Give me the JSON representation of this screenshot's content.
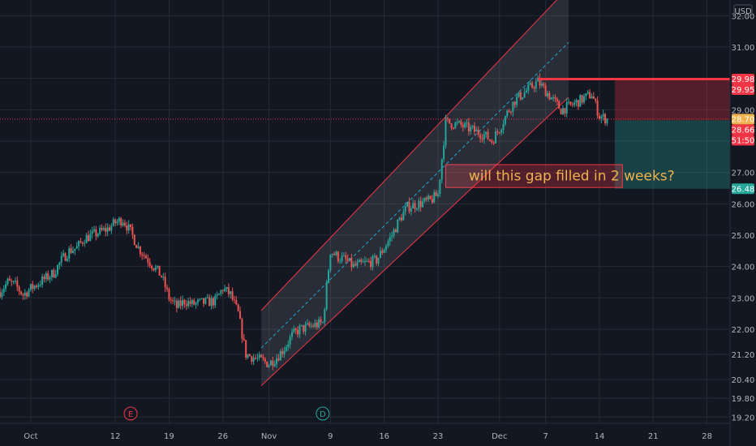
{
  "chart_data": {
    "type": "candlestick",
    "currency": "USD",
    "ylim": [
      19.0,
      32.5
    ],
    "y_ticks": [
      19.2,
      19.8,
      20.4,
      21.2,
      22.0,
      23.0,
      24.0,
      25.0,
      26.0,
      27.0,
      28.0,
      29.0,
      30.0,
      31.0,
      32.0
    ],
    "y_tick_labels": [
      "19.20",
      "19.80",
      "20.40",
      "21.20",
      "22.00",
      "23.00",
      "24.00",
      "25.00",
      "26.00",
      "27.00",
      "28.00",
      "29.00",
      "30.00",
      "31.00",
      "32.00"
    ],
    "x_range": [
      "2021-09-27",
      "2021-12-31"
    ],
    "x_ticks": [
      "2021-10-01",
      "2021-10-12",
      "2021-10-19",
      "2021-10-26",
      "2021-11-01",
      "2021-11-09",
      "2021-11-16",
      "2021-11-23",
      "2021-12-01",
      "2021-12-07",
      "2021-12-14",
      "2021-12-21",
      "2021-12-28"
    ],
    "x_tick_labels": [
      "Oct",
      "12",
      "19",
      "26",
      "Nov",
      "9",
      "16",
      "23",
      "Dec",
      "7",
      "14",
      "21",
      "28"
    ],
    "grid": true,
    "close_path": [
      [
        "2021-09-27",
        23.2
      ],
      [
        "2021-09-28",
        23.5
      ],
      [
        "2021-09-29",
        23.4
      ],
      [
        "2021-09-30",
        23.1
      ],
      [
        "2021-10-01",
        23.3
      ],
      [
        "2021-10-04",
        23.8
      ],
      [
        "2021-10-05",
        24.2
      ],
      [
        "2021-10-06",
        24.5
      ],
      [
        "2021-10-07",
        24.6
      ],
      [
        "2021-10-08",
        24.9
      ],
      [
        "2021-10-11",
        25.2
      ],
      [
        "2021-10-12",
        25.4
      ],
      [
        "2021-10-13",
        25.5
      ],
      [
        "2021-10-14",
        25.1
      ],
      [
        "2021-10-15",
        24.6
      ],
      [
        "2021-10-18",
        23.7
      ],
      [
        "2021-10-19",
        23.0
      ],
      [
        "2021-10-20",
        22.7
      ],
      [
        "2021-10-21",
        22.9
      ],
      [
        "2021-10-22",
        22.8
      ],
      [
        "2021-10-25",
        22.9
      ],
      [
        "2021-10-26",
        23.3
      ],
      [
        "2021-10-27",
        23.1
      ],
      [
        "2021-10-28",
        22.5
      ],
      [
        "2021-10-29",
        21.2
      ],
      [
        "2021-11-01",
        20.9
      ],
      [
        "2021-11-02",
        21.1
      ],
      [
        "2021-11-03",
        21.4
      ],
      [
        "2021-11-04",
        21.8
      ],
      [
        "2021-11-05",
        22.0
      ],
      [
        "2021-11-08",
        22.2
      ],
      [
        "2021-11-09",
        24.5
      ],
      [
        "2021-11-10",
        24.3
      ],
      [
        "2021-11-11",
        24.2
      ],
      [
        "2021-11-12",
        24.0
      ],
      [
        "2021-11-15",
        24.2
      ],
      [
        "2021-11-16",
        24.6
      ],
      [
        "2021-11-17",
        25.0
      ],
      [
        "2021-11-18",
        25.5
      ],
      [
        "2021-11-19",
        25.9
      ],
      [
        "2021-11-22",
        26.1
      ],
      [
        "2021-11-23",
        26.3
      ],
      [
        "2021-11-24",
        28.6
      ],
      [
        "2021-11-26",
        28.5
      ],
      [
        "2021-11-29",
        28.2
      ],
      [
        "2021-11-30",
        28.0
      ],
      [
        "2021-12-01",
        28.4
      ],
      [
        "2021-12-02",
        28.9
      ],
      [
        "2021-12-03",
        29.3
      ],
      [
        "2021-12-06",
        29.9
      ],
      [
        "2021-12-07",
        29.6
      ],
      [
        "2021-12-08",
        29.3
      ],
      [
        "2021-12-09",
        29.0
      ],
      [
        "2021-12-10",
        29.1
      ],
      [
        "2021-12-13",
        29.5
      ],
      [
        "2021-12-14",
        28.8
      ],
      [
        "2021-12-15",
        28.7
      ]
    ],
    "channel": {
      "start": "2021-10-31",
      "end": "2021-12-10",
      "lower": [
        20.2,
        29.4
      ],
      "upper": [
        22.6,
        32.9
      ]
    },
    "price_labels": [
      {
        "text": "29.98",
        "value": 29.98,
        "color": "#f23645"
      },
      {
        "text": "29.95",
        "value": 29.95,
        "color": "#f23645"
      },
      {
        "text": "28.70",
        "value": 28.7,
        "color": "#f0b24d"
      },
      {
        "text": "28.66",
        "value": 28.66,
        "color": "#f23645"
      },
      {
        "text": "51:50",
        "value": 28.25,
        "color": "#f23645"
      },
      {
        "text": "26.48",
        "value": 26.48,
        "color": "#26a69a"
      }
    ],
    "horizontal_line": {
      "value": 29.98,
      "from": "2021-12-06"
    },
    "last_price": 28.7,
    "position": {
      "entry": 28.66,
      "stop": 29.98,
      "target": 26.48,
      "from": "2021-12-16"
    },
    "gap_box": {
      "from": "2021-11-24",
      "to": "2021-12-17",
      "top": 27.25,
      "bottom": 26.52
    },
    "annotation": "will this gap filled in 2 weeks?",
    "events": [
      {
        "letter": "E",
        "date": "2021-10-14",
        "color": "#f23645"
      },
      {
        "letter": "D",
        "date": "2021-11-08",
        "color": "#26a69a"
      }
    ],
    "colors": {
      "up": "#26a69a",
      "down": "#ef5350",
      "background": "#131722",
      "grid": "#262a35",
      "channel": "#f23645"
    }
  }
}
